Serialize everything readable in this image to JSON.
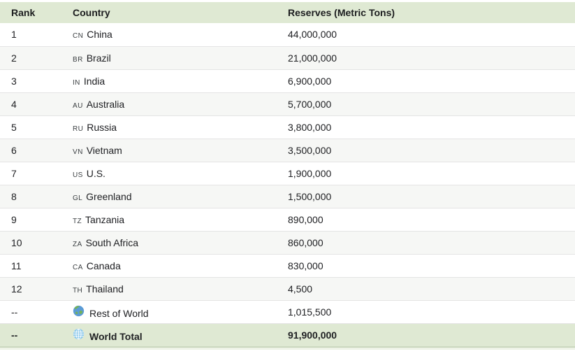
{
  "colors": {
    "header_bg": "#dfe9d3",
    "alt_row_bg": "#f6f7f5",
    "total_row_bg": "#dfe9d3",
    "divider": "#e4e4e4",
    "bottom_border": "#cbd7bf",
    "bottom_strip": "#eef3e7",
    "text": "#202124"
  },
  "table": {
    "columns": [
      {
        "label": "Rank"
      },
      {
        "label": "Country"
      },
      {
        "label": "Reserves (Metric Tons)"
      }
    ],
    "rows": [
      {
        "rank": "1",
        "code": "CN",
        "country": "China",
        "reserves": "44,000,000"
      },
      {
        "rank": "2",
        "code": "BR",
        "country": "Brazil",
        "reserves": "21,000,000"
      },
      {
        "rank": "3",
        "code": "IN",
        "country": "India",
        "reserves": "6,900,000"
      },
      {
        "rank": "4",
        "code": "AU",
        "country": "Australia",
        "reserves": "5,700,000"
      },
      {
        "rank": "5",
        "code": "RU",
        "country": "Russia",
        "reserves": "3,800,000"
      },
      {
        "rank": "6",
        "code": "VN",
        "country": "Vietnam",
        "reserves": "3,500,000"
      },
      {
        "rank": "7",
        "code": "US",
        "country": "U.S.",
        "reserves": "1,900,000"
      },
      {
        "rank": "8",
        "code": "GL",
        "country": "Greenland",
        "reserves": "1,500,000"
      },
      {
        "rank": "9",
        "code": "TZ",
        "country": "Tanzania",
        "reserves": "890,000"
      },
      {
        "rank": "10",
        "code": "ZA",
        "country": "South Africa",
        "reserves": "860,000"
      },
      {
        "rank": "11",
        "code": "CA",
        "country": "Canada",
        "reserves": "830,000"
      },
      {
        "rank": "12",
        "code": "TH",
        "country": "Thailand",
        "reserves": "4,500"
      },
      {
        "rank": "--",
        "icon": "earth-globe-icon",
        "country": "Rest of World",
        "reserves": "1,015,500"
      },
      {
        "rank": "--",
        "icon": "meridian-globe-icon",
        "country": "World Total",
        "reserves": "91,900,000",
        "total": true
      }
    ]
  },
  "chart_data": {
    "type": "table",
    "title": "Reserves (Metric Tons) by Country",
    "columns": [
      "Rank",
      "Country",
      "Reserves (Metric Tons)"
    ],
    "rows": [
      [
        "1",
        "China",
        44000000
      ],
      [
        "2",
        "Brazil",
        21000000
      ],
      [
        "3",
        "India",
        6900000
      ],
      [
        "4",
        "Australia",
        5700000
      ],
      [
        "5",
        "Russia",
        3800000
      ],
      [
        "6",
        "Vietnam",
        3500000
      ],
      [
        "7",
        "U.S.",
        1900000
      ],
      [
        "8",
        "Greenland",
        1500000
      ],
      [
        "9",
        "Tanzania",
        890000
      ],
      [
        "10",
        "South Africa",
        860000
      ],
      [
        "11",
        "Canada",
        830000
      ],
      [
        "12",
        "Thailand",
        4500
      ],
      [
        "--",
        "Rest of World",
        1015500
      ],
      [
        "--",
        "World Total",
        91900000
      ]
    ]
  }
}
